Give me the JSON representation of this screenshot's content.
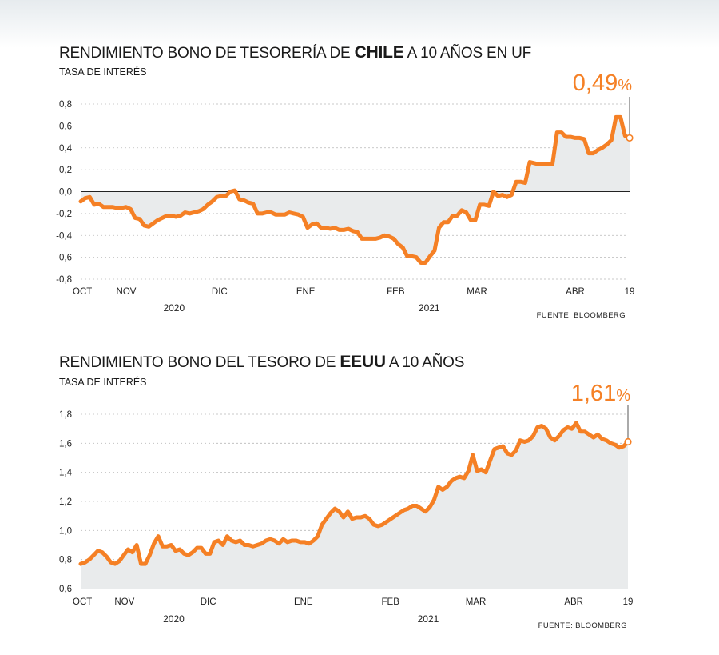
{
  "chart_data": [
    {
      "type": "area",
      "title_prefix": "RENDIMIENTO BONO DE TESORERÍA DE ",
      "title_bold": "CHILE",
      "title_suffix": " A 10 AÑOS EN UF",
      "ylabel": "TASA DE INTERÉS",
      "ylim": [
        -0.8,
        0.8
      ],
      "yticks": [
        "0,8",
        "0,6",
        "0,4",
        "0,2",
        "0,0",
        "-0,2",
        "-0,4",
        "-0,6",
        "-0,8"
      ],
      "ytick_values": [
        0.8,
        0.6,
        0.4,
        0.2,
        0.0,
        -0.2,
        -0.4,
        -0.6,
        -0.8
      ],
      "xticks": [
        {
          "label": "OCT",
          "pos": 0.0
        },
        {
          "label": "NOV",
          "pos": 0.083
        },
        {
          "label": "DIC",
          "pos": 0.253
        },
        {
          "label": "ENE",
          "pos": 0.41
        },
        {
          "label": "FEB",
          "pos": 0.574
        },
        {
          "label": "MAR",
          "pos": 0.722
        },
        {
          "label": "ABR",
          "pos": 0.901
        },
        {
          "label": "19",
          "pos": 1.0
        }
      ],
      "years": [
        {
          "label": "2020",
          "pos": 0.17
        },
        {
          "label": "2021",
          "pos": 0.635
        }
      ],
      "source": "FUENTE: BLOOMBERG",
      "last_value_label": "0,49",
      "last_value_unit": "%",
      "grid": true,
      "zero_line": true,
      "values": [
        -0.09,
        -0.06,
        -0.05,
        -0.12,
        -0.11,
        -0.14,
        -0.14,
        -0.14,
        -0.15,
        -0.15,
        -0.14,
        -0.16,
        -0.24,
        -0.25,
        -0.31,
        -0.32,
        -0.29,
        -0.26,
        -0.24,
        -0.22,
        -0.22,
        -0.23,
        -0.22,
        -0.19,
        -0.2,
        -0.19,
        -0.18,
        -0.16,
        -0.12,
        -0.09,
        -0.05,
        -0.04,
        -0.04,
        0.0,
        0.01,
        -0.07,
        -0.08,
        -0.1,
        -0.11,
        -0.2,
        -0.2,
        -0.19,
        -0.19,
        -0.21,
        -0.21,
        -0.21,
        -0.19,
        -0.2,
        -0.21,
        -0.23,
        -0.33,
        -0.3,
        -0.29,
        -0.33,
        -0.33,
        -0.34,
        -0.33,
        -0.35,
        -0.35,
        -0.34,
        -0.36,
        -0.37,
        -0.43,
        -0.43,
        -0.43,
        -0.43,
        -0.42,
        -0.4,
        -0.41,
        -0.43,
        -0.48,
        -0.51,
        -0.59,
        -0.59,
        -0.6,
        -0.65,
        -0.65,
        -0.59,
        -0.54,
        -0.33,
        -0.28,
        -0.28,
        -0.22,
        -0.22,
        -0.17,
        -0.19,
        -0.26,
        -0.26,
        -0.12,
        -0.12,
        -0.13,
        0.0,
        -0.04,
        -0.03,
        -0.05,
        -0.03,
        0.09,
        0.09,
        0.08,
        0.27,
        0.26,
        0.25,
        0.25,
        0.25,
        0.25,
        0.54,
        0.54,
        0.5,
        0.5,
        0.49,
        0.49,
        0.48,
        0.35,
        0.35,
        0.38,
        0.4,
        0.43,
        0.47,
        0.68,
        0.68,
        0.51,
        0.49
      ]
    },
    {
      "type": "area",
      "title_prefix": "RENDIMIENTO BONO DEL TESORO DE ",
      "title_bold": "EEUU",
      "title_suffix": " A 10 AÑOS",
      "ylabel": "TASA DE INTERÉS",
      "ylim": [
        0.6,
        1.8
      ],
      "yticks": [
        "1,8",
        "1,6",
        "1,4",
        "1,2",
        "1,0",
        "0,8",
        "0,6"
      ],
      "ytick_values": [
        1.8,
        1.6,
        1.4,
        1.2,
        1.0,
        0.8,
        0.6
      ],
      "xticks": [
        {
          "label": "OCT",
          "pos": 0.0
        },
        {
          "label": "NOV",
          "pos": 0.08
        },
        {
          "label": "DIC",
          "pos": 0.233
        },
        {
          "label": "ENE",
          "pos": 0.407
        },
        {
          "label": "FEB",
          "pos": 0.566
        },
        {
          "label": "MAR",
          "pos": 0.722
        },
        {
          "label": "ABR",
          "pos": 0.901
        },
        {
          "label": "19",
          "pos": 1.0
        }
      ],
      "years": [
        {
          "label": "2020",
          "pos": 0.17
        },
        {
          "label": "2021",
          "pos": 0.635
        }
      ],
      "source": "FUENTE: BLOOMBERG",
      "last_value_label": "1,61",
      "last_value_unit": "%",
      "grid": true,
      "zero_line": false,
      "values": [
        0.77,
        0.78,
        0.8,
        0.83,
        0.86,
        0.85,
        0.82,
        0.78,
        0.77,
        0.79,
        0.83,
        0.87,
        0.85,
        0.9,
        0.77,
        0.77,
        0.83,
        0.91,
        0.96,
        0.89,
        0.89,
        0.9,
        0.86,
        0.87,
        0.84,
        0.83,
        0.85,
        0.88,
        0.88,
        0.84,
        0.84,
        0.92,
        0.93,
        0.9,
        0.96,
        0.93,
        0.92,
        0.93,
        0.9,
        0.9,
        0.89,
        0.9,
        0.91,
        0.93,
        0.94,
        0.93,
        0.91,
        0.94,
        0.92,
        0.93,
        0.93,
        0.92,
        0.92,
        0.91,
        0.93,
        0.96,
        1.04,
        1.08,
        1.12,
        1.15,
        1.13,
        1.09,
        1.13,
        1.08,
        1.09,
        1.09,
        1.1,
        1.08,
        1.04,
        1.03,
        1.04,
        1.06,
        1.08,
        1.1,
        1.12,
        1.14,
        1.15,
        1.17,
        1.17,
        1.15,
        1.13,
        1.16,
        1.21,
        1.3,
        1.28,
        1.3,
        1.34,
        1.36,
        1.37,
        1.36,
        1.41,
        1.52,
        1.41,
        1.42,
        1.4,
        1.48,
        1.56,
        1.57,
        1.58,
        1.53,
        1.52,
        1.55,
        1.62,
        1.61,
        1.62,
        1.65,
        1.71,
        1.72,
        1.7,
        1.64,
        1.62,
        1.65,
        1.69,
        1.71,
        1.7,
        1.74,
        1.68,
        1.68,
        1.66,
        1.64,
        1.66,
        1.63,
        1.62,
        1.6,
        1.59,
        1.57,
        1.58,
        1.61
      ]
    }
  ]
}
